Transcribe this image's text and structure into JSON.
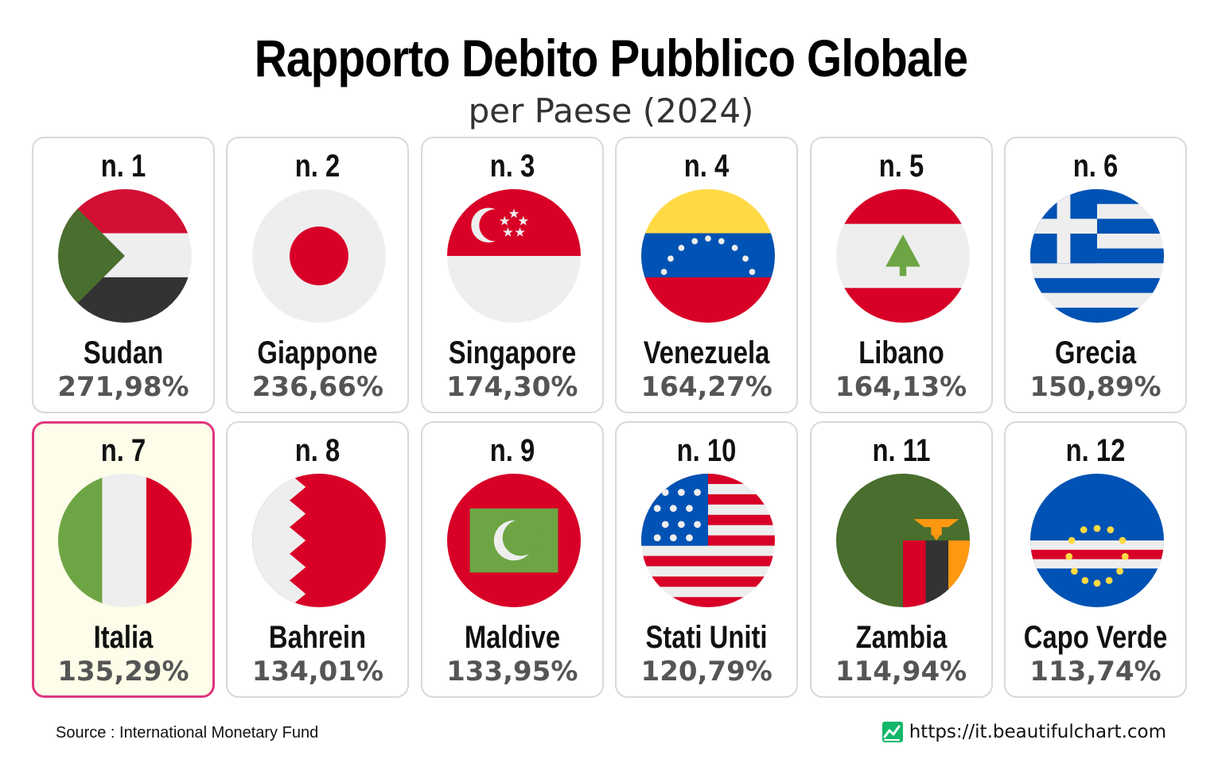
{
  "title": "Rapporto Debito Pubblico Globale",
  "subtitle": "per Paese (2024)",
  "footer": {
    "source": "Source : International Monetary Fund",
    "website": "https://it.beautifulchart.com"
  },
  "colors": {
    "highlight_border": "#e0357f",
    "highlight_fill": "#fdfde9",
    "card_border": "#d9d9d9",
    "value_text": "#555555",
    "brand_green": "#12b76a"
  },
  "chart_data": {
    "type": "table",
    "title": "Rapporto Debito Pubblico Globale",
    "subtitle": "per Paese (2024)",
    "highlighted": "Italia",
    "items": [
      {
        "rank": "n. 1",
        "country": "Sudan",
        "value_label": "271,98%",
        "value": 271.98,
        "flag": "sudan-flag-icon"
      },
      {
        "rank": "n. 2",
        "country": "Giappone",
        "value_label": "236,66%",
        "value": 236.66,
        "flag": "japan-flag-icon"
      },
      {
        "rank": "n. 3",
        "country": "Singapore",
        "value_label": "174,30%",
        "value": 174.3,
        "flag": "singapore-flag-icon"
      },
      {
        "rank": "n. 4",
        "country": "Venezuela",
        "value_label": "164,27%",
        "value": 164.27,
        "flag": "venezuela-flag-icon"
      },
      {
        "rank": "n. 5",
        "country": "Libano",
        "value_label": "164,13%",
        "value": 164.13,
        "flag": "lebanon-flag-icon"
      },
      {
        "rank": "n. 6",
        "country": "Grecia",
        "value_label": "150,89%",
        "value": 150.89,
        "flag": "greece-flag-icon"
      },
      {
        "rank": "n. 7",
        "country": "Italia",
        "value_label": "135,29%",
        "value": 135.29,
        "flag": "italy-flag-icon"
      },
      {
        "rank": "n. 8",
        "country": "Bahrein",
        "value_label": "134,01%",
        "value": 134.01,
        "flag": "bahrain-flag-icon"
      },
      {
        "rank": "n. 9",
        "country": "Maldive",
        "value_label": "133,95%",
        "value": 133.95,
        "flag": "maldives-flag-icon"
      },
      {
        "rank": "n. 10",
        "country": "Stati Uniti",
        "value_label": "120,79%",
        "value": 120.79,
        "flag": "usa-flag-icon"
      },
      {
        "rank": "n. 11",
        "country": "Zambia",
        "value_label": "114,94%",
        "value": 114.94,
        "flag": "zambia-flag-icon"
      },
      {
        "rank": "n. 12",
        "country": "Capo Verde",
        "value_label": "113,74%",
        "value": 113.74,
        "flag": "cape-verde-flag-icon"
      }
    ]
  }
}
